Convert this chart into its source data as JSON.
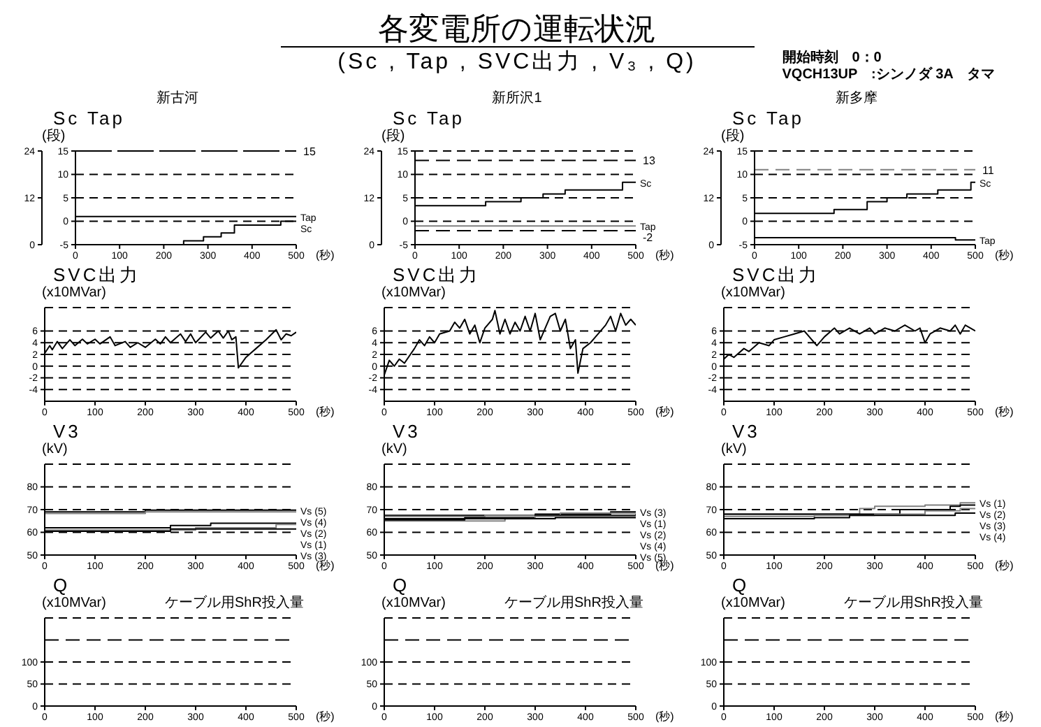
{
  "chart_data": [
    {
      "type": "other",
      "title": "各変電所の運転状況",
      "subtitle": "(Sc , Tap , SVC出力 , V₃ , Q)",
      "annotations": [
        "開始時刻　0：0",
        "VQCH13UP　:シンノダ 3A　タマ"
      ]
    },
    {
      "type": "step",
      "title": "新古河",
      "ylabel": "Sc Tap",
      "xlabel": "(秒)",
      "annotations": [
        "(段)"
      ],
      "xlim": [
        0,
        500
      ],
      "xticks": [
        0,
        100,
        200,
        300,
        400,
        500
      ],
      "ylim": [
        -5,
        15
      ],
      "yticks": [
        -5,
        0,
        5,
        10,
        15
      ],
      "y2lim": [
        0,
        24
      ],
      "y2ticks": [
        0,
        12,
        24
      ],
      "grid": "y",
      "ref_lines": [
        {
          "axis": "y",
          "value": 15,
          "label": "15",
          "color": "#000000",
          "line_style": "dashed"
        }
      ],
      "series": [
        {
          "name": "Tap",
          "color": "#000000",
          "x": [
            0,
            500
          ],
          "values": [
            1,
            1
          ]
        },
        {
          "name": "Sc",
          "color": "#000000",
          "axis": "y2",
          "x": [
            0,
            245,
            290,
            330,
            360,
            465,
            500
          ],
          "values": [
            0,
            1,
            2,
            3,
            5,
            6,
            6
          ]
        }
      ]
    },
    {
      "type": "step",
      "title": "新所沢1",
      "ylabel": "Sc Tap",
      "xlabel": "(秒)",
      "annotations": [
        "(段)"
      ],
      "xlim": [
        0,
        500
      ],
      "xticks": [
        0,
        100,
        200,
        300,
        400,
        500
      ],
      "ylim": [
        -5,
        15
      ],
      "yticks": [
        -5,
        0,
        5,
        10,
        15
      ],
      "y2lim": [
        0,
        24
      ],
      "y2ticks": [
        0,
        12,
        24
      ],
      "grid": "y",
      "ref_lines": [
        {
          "axis": "y",
          "value": 13,
          "label": "13",
          "color": "#000000",
          "line_style": "dashed"
        },
        {
          "axis": "y",
          "value": -2,
          "label": "-2",
          "color": "#000000",
          "line_style": "dashed"
        }
      ],
      "series": [
        {
          "name": "Tap",
          "color": "#808080",
          "x": [
            0,
            500
          ],
          "values": [
            -1,
            -1
          ]
        },
        {
          "name": "Sc",
          "color": "#000000",
          "axis": "y2",
          "x": [
            0,
            160,
            240,
            290,
            340,
            470,
            500
          ],
          "values": [
            10,
            11,
            12,
            13,
            14,
            16,
            16
          ]
        }
      ]
    },
    {
      "type": "step",
      "title": "新多摩",
      "ylabel": "Sc Tap",
      "xlabel": "(秒)",
      "annotations": [
        "(段)"
      ],
      "xlim": [
        0,
        500
      ],
      "xticks": [
        0,
        100,
        200,
        300,
        400,
        500
      ],
      "ylim": [
        -5,
        15
      ],
      "yticks": [
        -5,
        0,
        5,
        10,
        15
      ],
      "y2lim": [
        0,
        24
      ],
      "y2ticks": [
        0,
        12,
        24
      ],
      "grid": "y",
      "ref_lines": [
        {
          "axis": "y",
          "value": 11,
          "label": "11",
          "color": "#808080",
          "line_style": "dashed"
        }
      ],
      "series": [
        {
          "name": "Tap",
          "color": "#000000",
          "x": [
            0,
            455,
            500
          ],
          "values": [
            -3.5,
            -4,
            -4
          ]
        },
        {
          "name": "Sc",
          "color": "#000000",
          "axis": "y2",
          "x": [
            0,
            180,
            255,
            300,
            345,
            415,
            490,
            500
          ],
          "values": [
            8,
            9,
            11,
            12,
            13,
            14,
            16,
            16
          ]
        }
      ]
    },
    {
      "type": "line",
      "ylabel": "SVC出力",
      "xlabel": "(秒)",
      "annotations": [
        "(x10MVar)"
      ],
      "xlim": [
        0,
        500
      ],
      "xticks": [
        0,
        100,
        200,
        300,
        400,
        500
      ],
      "ylim": [
        -6,
        10
      ],
      "yticks": [
        -4,
        -2,
        0,
        2,
        4,
        6
      ],
      "grid": "y",
      "series": [
        {
          "color": "#000000",
          "x": [
            0,
            10,
            15,
            25,
            35,
            50,
            60,
            75,
            85,
            100,
            110,
            130,
            140,
            160,
            170,
            185,
            200,
            220,
            230,
            240,
            250,
            270,
            280,
            290,
            300,
            320,
            330,
            345,
            355,
            365,
            372,
            380,
            385,
            400,
            420,
            440,
            460,
            470,
            480,
            490,
            500
          ],
          "values": [
            2.2,
            3.5,
            2.8,
            4.2,
            3,
            4.5,
            3.5,
            4.6,
            3.8,
            4.6,
            3.8,
            5,
            3.5,
            4.2,
            3.2,
            4,
            3.2,
            4.6,
            3.8,
            5,
            4,
            5.5,
            4.2,
            5.5,
            4,
            5.8,
            4.8,
            6,
            4.8,
            6,
            4.5,
            5,
            -0.3,
            1.5,
            3,
            4.5,
            6.2,
            4.5,
            5.5,
            5.2,
            5.8
          ]
        }
      ]
    },
    {
      "type": "line",
      "ylabel": "SVC出力",
      "xlabel": "(秒)",
      "annotations": [
        "(x10MVar)"
      ],
      "xlim": [
        0,
        500
      ],
      "xticks": [
        0,
        100,
        200,
        300,
        400,
        500
      ],
      "ylim": [
        -6,
        10
      ],
      "yticks": [
        -4,
        -2,
        0,
        2,
        4,
        6
      ],
      "grid": "y",
      "series": [
        {
          "color": "#000000",
          "x": [
            0,
            10,
            20,
            30,
            40,
            60,
            70,
            80,
            90,
            100,
            110,
            130,
            140,
            150,
            160,
            170,
            180,
            190,
            200,
            215,
            220,
            230,
            240,
            250,
            260,
            270,
            280,
            290,
            300,
            310,
            330,
            340,
            350,
            360,
            370,
            380,
            385,
            395,
            410,
            420,
            440,
            450,
            460,
            470,
            480,
            490,
            500
          ],
          "values": [
            -1.5,
            1,
            0,
            1.2,
            0.5,
            3,
            4.5,
            3.5,
            5,
            4,
            5.5,
            6,
            7.5,
            6.5,
            8,
            5.5,
            7,
            4,
            6.5,
            8,
            9.5,
            5.5,
            8,
            5.5,
            7.5,
            6,
            8.5,
            6,
            9,
            4.5,
            8.5,
            9,
            6,
            8,
            3,
            4.5,
            -1.2,
            3,
            4,
            5,
            7,
            8.5,
            6,
            9,
            7,
            8,
            7
          ]
        }
      ]
    },
    {
      "type": "line",
      "ylabel": "SVC出力",
      "xlabel": "(秒)",
      "annotations": [
        "(x10MVar)"
      ],
      "xlim": [
        0,
        500
      ],
      "xticks": [
        0,
        100,
        200,
        300,
        400,
        500
      ],
      "ylim": [
        -6,
        10
      ],
      "yticks": [
        -4,
        -2,
        0,
        2,
        4,
        6
      ],
      "grid": "y",
      "series": [
        {
          "color": "#000000",
          "x": [
            0,
            10,
            20,
            40,
            50,
            70,
            90,
            100,
            120,
            140,
            160,
            170,
            180,
            185,
            200,
            220,
            230,
            250,
            270,
            290,
            300,
            320,
            340,
            360,
            380,
            390,
            400,
            410,
            430,
            450,
            460,
            470,
            480,
            500
          ],
          "values": [
            1.2,
            2,
            1.5,
            3,
            2.5,
            4,
            3.5,
            4.5,
            5,
            5.5,
            6,
            5,
            4,
            3.5,
            5,
            6.5,
            5.5,
            6.5,
            5.5,
            6.5,
            5.5,
            6.5,
            6,
            7,
            6,
            6.5,
            4,
            5.5,
            6.5,
            6,
            7,
            5.5,
            7,
            6
          ]
        }
      ]
    },
    {
      "type": "step",
      "ylabel": "V3",
      "xlabel": "(秒)",
      "annotations": [
        "(kV)"
      ],
      "xlim": [
        0,
        500
      ],
      "xticks": [
        0,
        100,
        200,
        300,
        400,
        500
      ],
      "ylim": [
        50,
        90
      ],
      "yticks": [
        50,
        60,
        70,
        80
      ],
      "grid": "y",
      "series": [
        {
          "name": "Vs (5)",
          "color": "#000000",
          "x": [
            0,
            200,
            500
          ],
          "values": [
            69,
            69.8,
            69.8
          ]
        },
        {
          "name": "Vs (4)",
          "color": "#808080",
          "x": [
            0,
            200,
            500
          ],
          "values": [
            68.3,
            69,
            69
          ]
        },
        {
          "name": "Vs (2)",
          "color": "#000000",
          "x": [
            0,
            250,
            330,
            500
          ],
          "values": [
            62,
            63,
            64,
            64
          ]
        },
        {
          "name": "Vs (1)",
          "color": "#808080",
          "x": [
            0,
            300,
            460,
            500
          ],
          "values": [
            61,
            62,
            63.5,
            63.5
          ]
        },
        {
          "name": "Vs (3)",
          "color": "#000000",
          "x": [
            0,
            250,
            500
          ],
          "values": [
            60.5,
            61.5,
            61.5
          ]
        }
      ]
    },
    {
      "type": "step",
      "ylabel": "V3",
      "xlabel": "(秒)",
      "annotations": [
        "(kV)"
      ],
      "xlim": [
        0,
        500
      ],
      "xticks": [
        0,
        100,
        200,
        300,
        400,
        500
      ],
      "ylim": [
        50,
        90
      ],
      "yticks": [
        50,
        60,
        70,
        80
      ],
      "grid": "y",
      "series": [
        {
          "name": "Vs (3)",
          "color": "#000000",
          "x": [
            0,
            300,
            450,
            500
          ],
          "values": [
            67.5,
            68,
            69,
            69
          ]
        },
        {
          "name": "Vs (1)",
          "color": "#808080",
          "x": [
            0,
            200,
            350,
            500
          ],
          "values": [
            67,
            67.5,
            68.5,
            68.5
          ]
        },
        {
          "name": "Vs (2)",
          "color": "#000000",
          "x": [
            0,
            160,
            300,
            500
          ],
          "values": [
            66,
            66.5,
            67.5,
            68
          ]
        },
        {
          "name": "Vs (4)",
          "color": "#808080",
          "x": [
            0,
            240,
            300,
            500
          ],
          "values": [
            65,
            66,
            67,
            67
          ]
        },
        {
          "name": "Vs (5)",
          "color": "#000000",
          "x": [
            0,
            160,
            340,
            500
          ],
          "values": [
            65.5,
            66,
            66.5,
            66.5
          ]
        }
      ]
    },
    {
      "type": "step",
      "ylabel": "V3",
      "xlabel": "(秒)",
      "annotations": [
        "(kV)"
      ],
      "xlim": [
        0,
        500
      ],
      "xticks": [
        0,
        100,
        200,
        300,
        400,
        500
      ],
      "ylim": [
        50,
        90
      ],
      "yticks": [
        50,
        60,
        70,
        80
      ],
      "grid": "y",
      "series": [
        {
          "name": "Vs (1)",
          "color": "#808080",
          "x": [
            0,
            270,
            300,
            400,
            470,
            500
          ],
          "values": [
            68,
            70.5,
            71.5,
            72,
            73,
            73
          ]
        },
        {
          "name": "Vs (2)",
          "color": "#000000",
          "x": [
            0,
            350,
            450,
            470,
            500
          ],
          "values": [
            68,
            70,
            71.5,
            72,
            72
          ]
        },
        {
          "name": "Vs (3)",
          "color": "#808080",
          "x": [
            0,
            180,
            300,
            400,
            470,
            500
          ],
          "values": [
            67,
            67.5,
            68,
            69.5,
            70.5,
            70.5
          ]
        },
        {
          "name": "Vs (4)",
          "color": "#000000",
          "x": [
            0,
            180,
            250,
            460,
            500
          ],
          "values": [
            66,
            66.5,
            67.5,
            68.5,
            68.5
          ]
        }
      ]
    },
    {
      "type": "line",
      "ylabel": "Q",
      "xlabel": "(秒)",
      "annotations": [
        "(x10MVar)",
        "ケーブル用ShR投入量"
      ],
      "xlim": [
        0,
        500
      ],
      "xticks": [
        0,
        100,
        200,
        300,
        400,
        500
      ],
      "ylim": [
        0,
        200
      ],
      "yticks": [
        0,
        50,
        100
      ],
      "grid": "y",
      "ref_lines": [
        {
          "axis": "y",
          "value": 150,
          "color": "#000000",
          "line_style": "dashed"
        }
      ]
    },
    {
      "type": "line",
      "ylabel": "Q",
      "xlabel": "(秒)",
      "annotations": [
        "(x10MVar)",
        "ケーブル用ShR投入量"
      ],
      "xlim": [
        0,
        500
      ],
      "xticks": [
        0,
        100,
        200,
        300,
        400,
        500
      ],
      "ylim": [
        0,
        200
      ],
      "yticks": [
        0,
        50,
        100
      ],
      "grid": "y",
      "ref_lines": [
        {
          "axis": "y",
          "value": 150,
          "color": "#000000",
          "line_style": "dashed"
        }
      ]
    },
    {
      "type": "line",
      "ylabel": "Q",
      "xlabel": "(秒)",
      "annotations": [
        "(x10MVar)",
        "ケーブル用ShR投入量"
      ],
      "xlim": [
        0,
        500
      ],
      "xticks": [
        0,
        100,
        200,
        300,
        400,
        500
      ],
      "ylim": [
        0,
        200
      ],
      "yticks": [
        0,
        50,
        100
      ],
      "grid": "y",
      "ref_lines": [
        {
          "axis": "y",
          "value": 150,
          "color": "#000000",
          "line_style": "dashed"
        }
      ]
    }
  ]
}
